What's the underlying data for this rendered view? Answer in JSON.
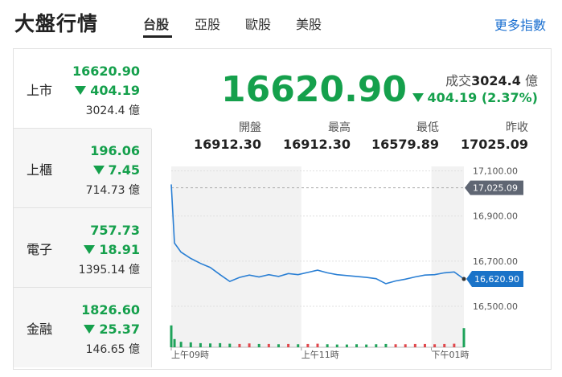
{
  "header": {
    "title": "大盤行情",
    "tabs": [
      "台股",
      "亞股",
      "歐股",
      "美股"
    ],
    "more": "更多指數"
  },
  "markets": [
    {
      "name": "上市",
      "price": "16620.90",
      "change": "404.19",
      "volume": "3024.4 億"
    },
    {
      "name": "上櫃",
      "price": "196.06",
      "change": "7.45",
      "volume": "714.73 億"
    },
    {
      "name": "電子",
      "price": "757.73",
      "change": "18.91",
      "volume": "1395.14 億"
    },
    {
      "name": "金融",
      "price": "1826.60",
      "change": "25.37",
      "volume": "146.65 億"
    }
  ],
  "summary": {
    "price": "16620.90",
    "volume_label": "成交",
    "volume": "3024.4",
    "volume_unit": "億",
    "change": "404.19 (2.37%)",
    "stats": [
      {
        "label": "開盤",
        "value": "16912.30"
      },
      {
        "label": "最高",
        "value": "16912.30"
      },
      {
        "label": "最低",
        "value": "16579.89"
      },
      {
        "label": "昨收",
        "value": "17025.09"
      }
    ]
  },
  "chart_data": {
    "type": "line",
    "x": [
      9,
      9.05,
      9.15,
      9.3,
      9.45,
      9.6,
      9.75,
      9.9,
      10.05,
      10.2,
      10.35,
      10.5,
      10.65,
      10.8,
      10.95,
      11.1,
      11.25,
      11.4,
      11.55,
      11.7,
      11.85,
      12.0,
      12.15,
      12.3,
      12.45,
      12.6,
      12.75,
      12.9,
      13.05,
      13.2,
      13.35,
      13.5
    ],
    "values": [
      17040,
      16780,
      16740,
      16712,
      16690,
      16672,
      16640,
      16610,
      16628,
      16638,
      16630,
      16640,
      16632,
      16645,
      16640,
      16650,
      16660,
      16648,
      16640,
      16636,
      16632,
      16628,
      16622,
      16600,
      16612,
      16620,
      16630,
      16638,
      16640,
      16648,
      16652,
      16620.9
    ],
    "volume": [
      80,
      30,
      20,
      18,
      15,
      14,
      15,
      13,
      12,
      14,
      12,
      12,
      11,
      12,
      11,
      12,
      13,
      11,
      10,
      10,
      11,
      10,
      11,
      12,
      11,
      11,
      12,
      12,
      11,
      12,
      13,
      70
    ],
    "color": "#2a7fd4",
    "xlim": [
      9,
      13.5
    ],
    "xticks": [
      {
        "value": 9,
        "label": "上午09時"
      },
      {
        "value": 11,
        "label": "上午11時"
      },
      {
        "value": 13,
        "label": "下午01時"
      }
    ],
    "ylim": [
      16450,
      17120
    ],
    "yticks": [
      {
        "value": 17100,
        "label": "17,100.00"
      },
      {
        "value": 16900,
        "label": "16,900.00"
      },
      {
        "value": 16700,
        "label": "16,700.00"
      },
      {
        "value": 16500,
        "label": "16,500.00"
      }
    ],
    "volume_ylim": [
      0,
      100
    ],
    "reference": {
      "value": 17025.09,
      "label": "17,025.09"
    },
    "last_label": "16,620.90",
    "grid": true
  }
}
